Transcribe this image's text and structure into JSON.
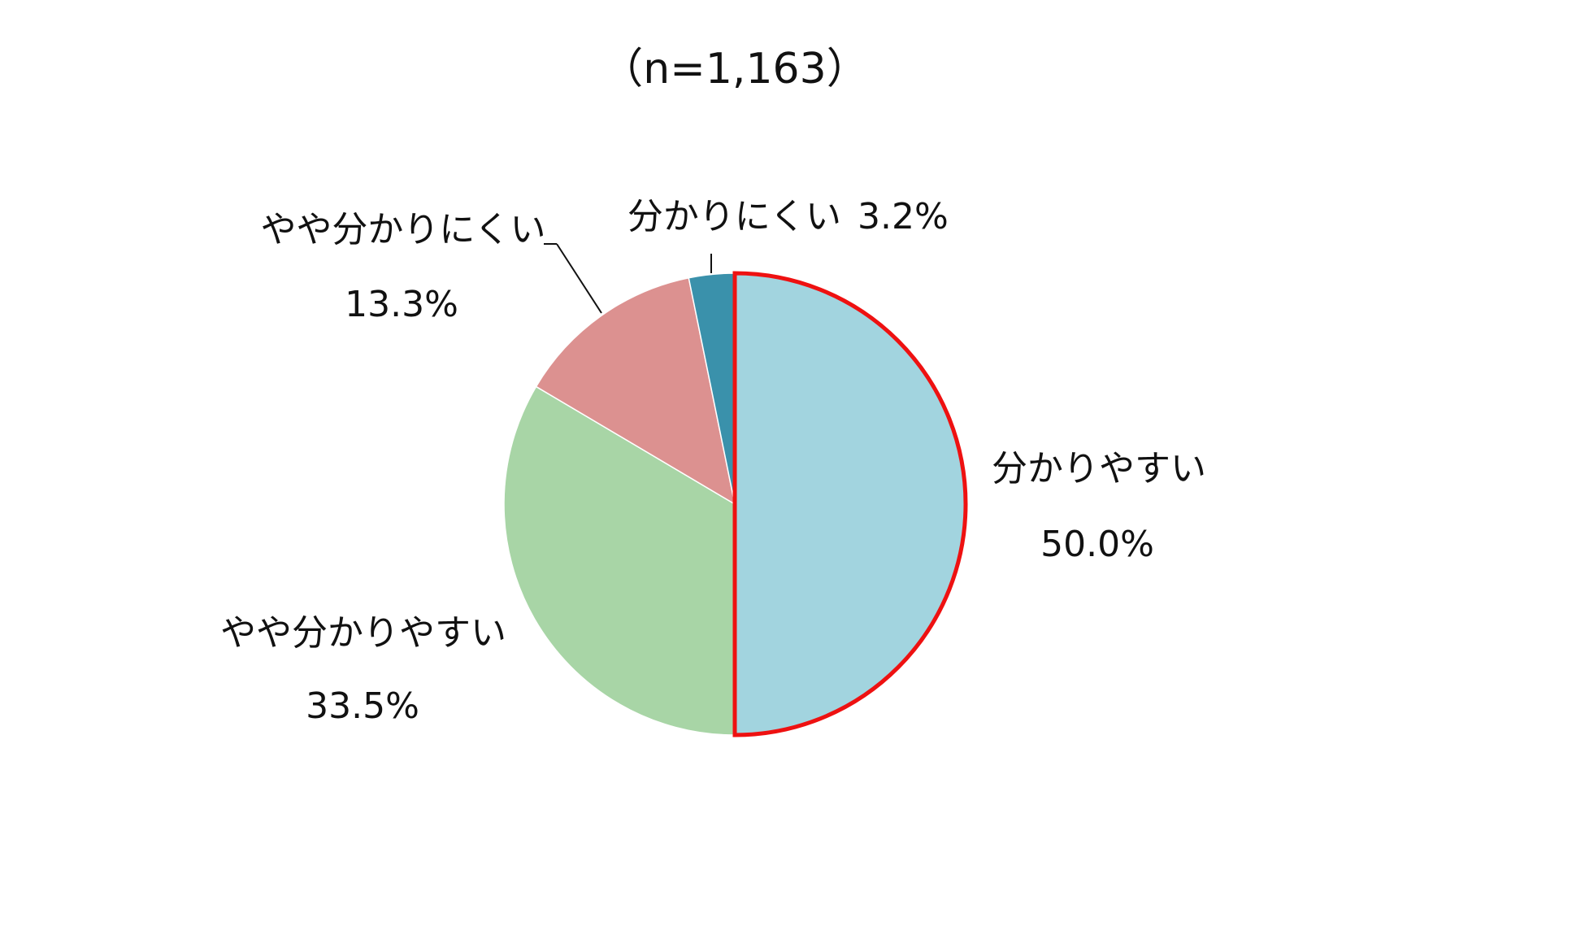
{
  "chart_data": {
    "type": "pie",
    "title": "（n=1,163）",
    "categories": [
      "分かりやすい",
      "やや分かりやすい",
      "やや分かりにくい",
      "分かりにくい"
    ],
    "values": [
      50.0,
      33.5,
      13.3,
      3.2
    ],
    "value_labels": [
      "50.0%",
      "33.5%",
      "13.3%",
      "3.2%"
    ],
    "colors": [
      "#a2d4df",
      "#a8d5a6",
      "#dc9190",
      "#3a91ab"
    ]
  }
}
